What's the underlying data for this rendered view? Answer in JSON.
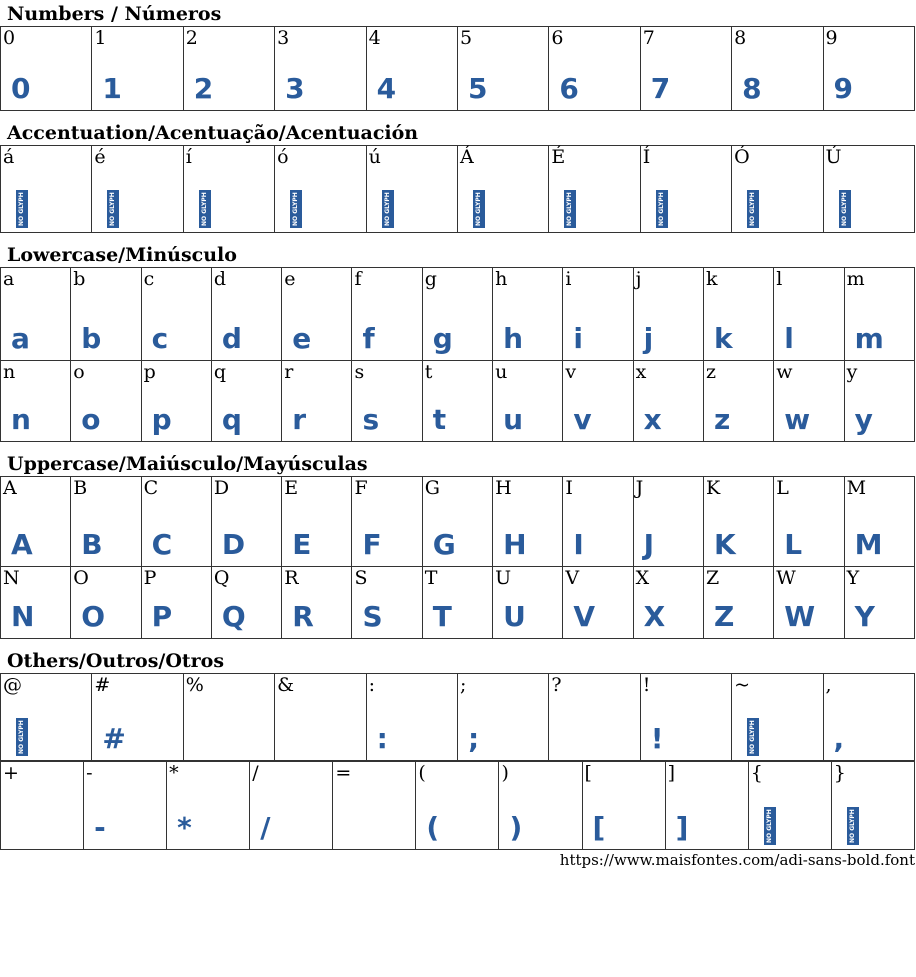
{
  "glyph_color": "#2a5b9b",
  "no_glyph_text": "NO GLYPH",
  "sections": [
    {
      "title": "Numbers / Números",
      "rows": [
        [
          "0",
          "1",
          "2",
          "3",
          "4",
          "5",
          "6",
          "7",
          "8",
          "9"
        ]
      ],
      "missing": [],
      "empty": [],
      "heights": [
        84
      ],
      "top": 2
    },
    {
      "title": "Accentuation/Acentuação/Acentuación",
      "rows": [
        [
          "á",
          "é",
          "í",
          "ó",
          "ú",
          "Á",
          "É",
          "Í",
          "Ó",
          "Ú"
        ]
      ],
      "missing": [
        "á",
        "é",
        "í",
        "ó",
        "ú",
        "Á",
        "É",
        "Í",
        "Ó",
        "Ú"
      ],
      "empty": [],
      "heights": [
        87
      ],
      "top": 10
    },
    {
      "title": "Lowercase/Minúsculo",
      "rows": [
        [
          "a",
          "b",
          "c",
          "d",
          "e",
          "f",
          "g",
          "h",
          "i",
          "j",
          "k",
          "l",
          "m"
        ],
        [
          "n",
          "o",
          "p",
          "q",
          "r",
          "s",
          "t",
          "u",
          "v",
          "x",
          "z",
          "w",
          "y"
        ]
      ],
      "missing": [],
      "empty": [],
      "heights": [
        93,
        81
      ],
      "top": 10
    },
    {
      "title": "Uppercase/Maiúsculo/Mayúsculas",
      "rows": [
        [
          "A",
          "B",
          "C",
          "D",
          "E",
          "F",
          "G",
          "H",
          "I",
          "J",
          "K",
          "L",
          "M"
        ],
        [
          "N",
          "O",
          "P",
          "Q",
          "R",
          "S",
          "T",
          "U",
          "V",
          "X",
          "Z",
          "W",
          "Y"
        ]
      ],
      "missing": [],
      "empty": [],
      "heights": [
        90,
        72
      ],
      "top": 10
    },
    {
      "title": "Others/Outros/Otros",
      "rows": [
        [
          "@",
          "#",
          "%",
          "&",
          ":",
          ";",
          "?",
          "!",
          "~",
          ","
        ],
        [
          "+",
          "-",
          "*",
          "/",
          "=",
          "(",
          ")",
          "[",
          "]",
          "{",
          "}"
        ]
      ],
      "missing": [
        "@",
        "~",
        "{",
        "}"
      ],
      "empty": [
        "%",
        "&",
        "?",
        "+",
        "="
      ],
      "heights": [
        87,
        88
      ],
      "top": 10,
      "split_rows": true
    }
  ],
  "footer_url": "https://www.maisfontes.com/adi-sans-bold.font"
}
